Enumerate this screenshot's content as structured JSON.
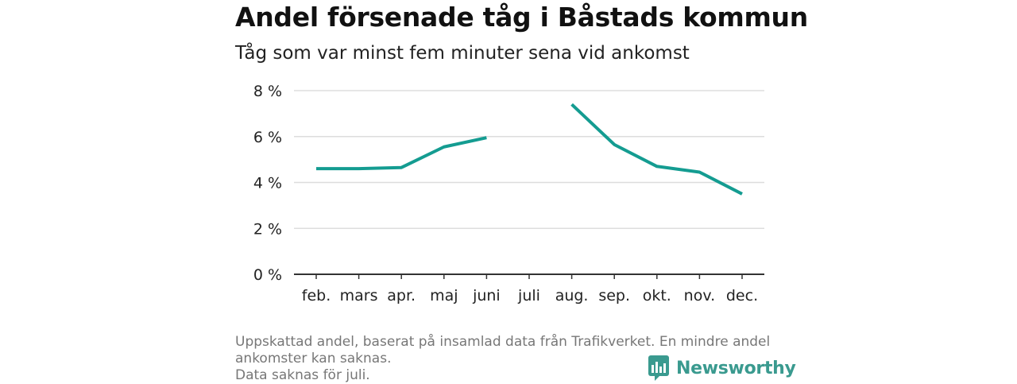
{
  "chart_data": {
    "type": "line",
    "title": "Andel försenade tåg i Båstads kommun",
    "subtitle": "Tåg som var minst fem minuter sena vid ankomst",
    "categories": [
      "feb.",
      "mars",
      "apr.",
      "maj",
      "juni",
      "juli",
      "aug.",
      "sep.",
      "okt.",
      "nov.",
      "dec."
    ],
    "series": [
      {
        "values": [
          4.6,
          4.6,
          4.65,
          5.55,
          5.95,
          null,
          7.4,
          5.65,
          4.7,
          4.45,
          3.5
        ],
        "color": "#149c91"
      }
    ],
    "ylim": [
      0,
      8
    ],
    "yticks": [
      0,
      2,
      4,
      6,
      8
    ],
    "ytick_labels": [
      "0 %",
      "2 %",
      "4 %",
      "6 %",
      "8 %"
    ],
    "xlabel": "",
    "ylabel": "",
    "grid": true,
    "legend": "none"
  },
  "footer": {
    "note_line1": "Uppskattad andel, baserat på insamlad data från Trafikverket. En mindre andel ankomster kan saknas.",
    "note_line2": "Data saknas för juli."
  },
  "brand": {
    "name": "Newsworthy",
    "icon": "newsworthy-logo-icon",
    "color": "#3a9a8f"
  }
}
